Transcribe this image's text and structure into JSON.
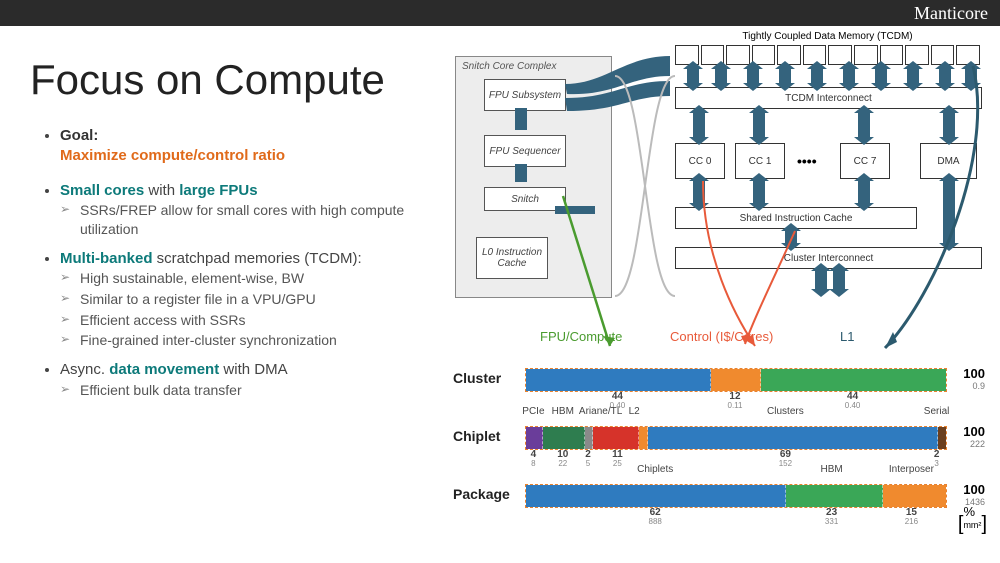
{
  "brand": "Manticore",
  "title": "Focus on Compute",
  "text": {
    "goal_label": "Goal:",
    "goal_line": "Maximize compute/control ratio",
    "small_cores": "Small cores",
    "with_large": " with ",
    "large_fpus": "large FPUs",
    "sub_ssr": "SSRs/FREP allow for small cores with high compute utilization",
    "multi_banked": "Multi-banked",
    "tcdm_tail": " scratchpad memories (TCDM):",
    "sub_hs": "High sustainable, element-wise, BW",
    "sub_reg": "Similar to a register file in a VPU/GPU",
    "sub_eff": "Efficient access with SSRs",
    "sub_sync": "Fine-grained inter-cluster synchronization",
    "async_pre": "Async. ",
    "data_move": "data movement",
    "dma_tail": " with DMA",
    "sub_bulk": "Efficient bulk data transfer"
  },
  "diagram": {
    "snitch_title": "Snitch Core Complex",
    "boxes": {
      "fpu_sub": "FPU Subsystem",
      "fpu_seq": "FPU Sequencer",
      "snitch": "Snitch",
      "l0": "L0 Instruction Cache",
      "tcdm_label": "Tightly Coupled Data Memory (TCDM)",
      "tcdm_ic": "TCDM Interconnect",
      "cc0": "CC 0",
      "cc1": "CC 1",
      "cc7": "CC 7",
      "dma": "DMA",
      "sic": "Shared Instruction Cache",
      "cic": "Cluster Interconnect"
    },
    "pointers": {
      "fpu": "FPU/Compute",
      "control": "Control (I$/Cores)",
      "l1": "L1"
    },
    "pointer_colors": {
      "fpu": "#4a9b2f",
      "control": "#e85a3a",
      "l1": "#2c5a6e"
    }
  },
  "legend": {
    "fpu": "FPU/Compute",
    "control": "Control (I$/Cores)",
    "l1": "L1"
  },
  "colors": {
    "blue": "#2f7bbf",
    "orange": "#f08a2e",
    "green": "#3aa757",
    "dkgreen": "#2e7d4f",
    "purple": "#6a3d9a",
    "red": "#d6332a",
    "brown": "#6b3f1e",
    "grey": "#8a8a8a"
  },
  "bars": {
    "cluster": {
      "label": "Cluster",
      "total": "100",
      "total_sub": "0.9",
      "segments": [
        {
          "c": "blue",
          "v": 44
        },
        {
          "c": "orange",
          "v": 12
        },
        {
          "c": "green",
          "v": 44
        }
      ],
      "bottom_labels": [
        {
          "pos": 22,
          "v": "44",
          "s": "0.40"
        },
        {
          "pos": 50,
          "v": "12",
          "s": "0.11"
        },
        {
          "pos": 78,
          "v": "44",
          "s": "0.40"
        }
      ],
      "top_labels": []
    },
    "chiplet": {
      "label": "Chiplet",
      "total": "100",
      "total_sub": "222",
      "top_labels": [
        {
          "pos": 2,
          "txt": "PCIe"
        },
        {
          "pos": 9,
          "txt": "HBM"
        },
        {
          "pos": 18,
          "txt": "Ariane/TL"
        },
        {
          "pos": 26,
          "txt": "L2"
        },
        {
          "pos": 62,
          "txt": "Clusters"
        },
        {
          "pos": 98,
          "txt": "Serial"
        }
      ],
      "segments": [
        {
          "c": "purple",
          "v": 4
        },
        {
          "c": "dkgreen",
          "v": 10
        },
        {
          "c": "grey",
          "v": 2
        },
        {
          "c": "red",
          "v": 11
        },
        {
          "c": "orange",
          "v": 2
        },
        {
          "c": "blue",
          "v": 69
        },
        {
          "c": "brown",
          "v": 2
        }
      ],
      "bottom_labels": [
        {
          "pos": 2,
          "v": "4",
          "s": "8"
        },
        {
          "pos": 9,
          "v": "10",
          "s": "22"
        },
        {
          "pos": 15,
          "v": "2",
          "s": "5"
        },
        {
          "pos": 22,
          "v": "11",
          "s": "25"
        },
        {
          "pos": 62,
          "v": "69",
          "s": "152"
        },
        {
          "pos": 98,
          "v": "2",
          "s": "3"
        }
      ]
    },
    "package": {
      "label": "Package",
      "total": "100",
      "total_sub": "1436",
      "top_labels": [
        {
          "pos": 31,
          "txt": "Chiplets"
        },
        {
          "pos": 73,
          "txt": "HBM"
        },
        {
          "pos": 92,
          "txt": "Interposer"
        }
      ],
      "segments": [
        {
          "c": "blue",
          "v": 62
        },
        {
          "c": "green",
          "v": 23
        },
        {
          "c": "orange",
          "v": 15
        }
      ],
      "bottom_labels": [
        {
          "pos": 31,
          "v": "62",
          "s": "888"
        },
        {
          "pos": 73,
          "v": "23",
          "s": "331"
        },
        {
          "pos": 92,
          "v": "15",
          "s": "216"
        }
      ],
      "unit": {
        "pct": "%",
        "mm": "mm²"
      }
    }
  }
}
